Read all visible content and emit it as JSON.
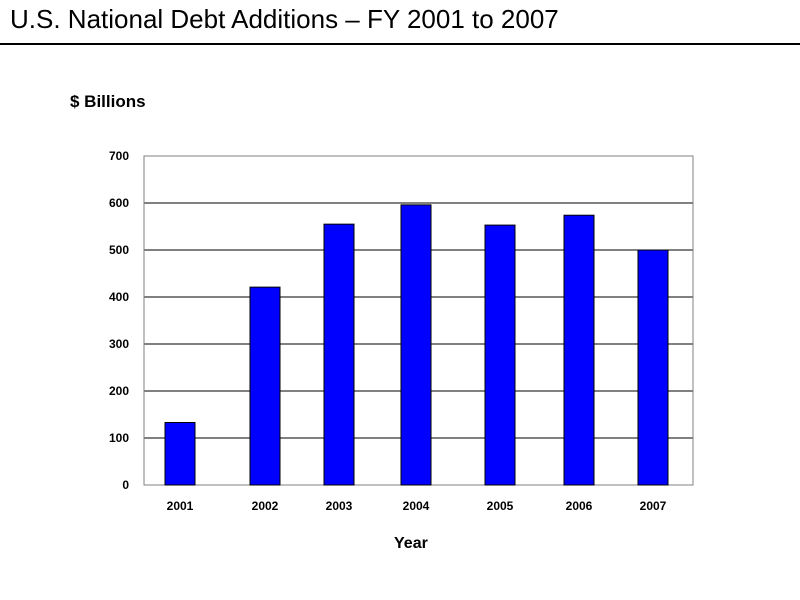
{
  "page": {
    "title": "U.S. National Debt Additions – FY 2001 to 2007"
  },
  "chart_data": {
    "type": "bar",
    "title": "U.S. National Debt Additions – FY 2001 to 2007",
    "ylabel": "$ Billions",
    "xlabel": "Year",
    "categories": [
      "2001",
      "2002",
      "2003",
      "2004",
      "2005",
      "2006",
      "2007"
    ],
    "values": [
      133,
      421,
      555,
      596,
      553,
      574,
      500
    ],
    "ylim": [
      0,
      700
    ],
    "yticks": [
      0,
      100,
      200,
      300,
      400,
      500,
      600,
      700
    ],
    "ytick_labels": [
      "0",
      "100",
      "200",
      "300",
      "400",
      "500",
      "600",
      "700"
    ],
    "grid": true,
    "legend": "none",
    "colors": {
      "bar_fill": "#0000ff",
      "bar_stroke": "#000000",
      "grid": "#000000",
      "plot_border": "#808080"
    }
  }
}
